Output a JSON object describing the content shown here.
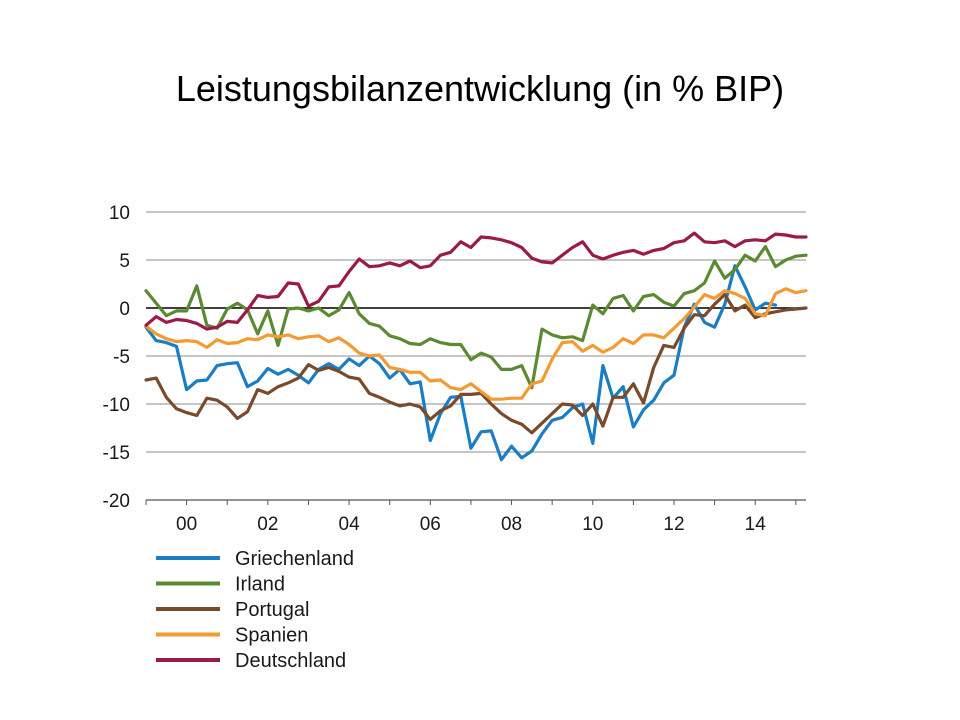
{
  "slide": {
    "title": "Leistungsbilanzentwicklung (in % BIP)"
  },
  "chart_data": {
    "type": "line",
    "title": "Leistungsbilanzentwicklung (in % BIP)",
    "xlabel": "",
    "ylabel": "",
    "xlim": [
      1999,
      2015.25
    ],
    "ylim": [
      -20,
      10
    ],
    "grid": true,
    "legend_position": "bottom-left",
    "y_ticks": [
      10,
      5,
      0,
      -5,
      -10,
      -15,
      -20
    ],
    "y_tick_labels": [
      "10",
      "5",
      "0",
      "-5",
      "-10",
      "-15",
      "-20"
    ],
    "x_ticks": [
      2000,
      2002,
      2004,
      2006,
      2008,
      2010,
      2012,
      2014
    ],
    "x_tick_labels": [
      "00",
      "02",
      "04",
      "06",
      "08",
      "10",
      "12",
      "14"
    ],
    "series": [
      {
        "name": "Griechenland",
        "color": "#1b7dc3",
        "x": [
          1999.0,
          1999.25,
          1999.5,
          1999.75,
          2000.0,
          2000.25,
          2000.5,
          2000.75,
          2001.0,
          2001.25,
          2001.5,
          2001.75,
          2002.0,
          2002.25,
          2002.5,
          2002.75,
          2003.0,
          2003.25,
          2003.5,
          2003.75,
          2004.0,
          2004.25,
          2004.5,
          2004.75,
          2005.0,
          2005.25,
          2005.5,
          2005.75,
          2006.0,
          2006.25,
          2006.5,
          2006.75,
          2007.0,
          2007.25,
          2007.5,
          2007.75,
          2008.0,
          2008.25,
          2008.5,
          2008.75,
          2009.0,
          2009.25,
          2009.5,
          2009.75,
          2010.0,
          2010.25,
          2010.5,
          2010.75,
          2011.0,
          2011.25,
          2011.5,
          2011.75,
          2012.0,
          2012.25,
          2012.5,
          2012.75,
          2013.0,
          2013.25,
          2013.5,
          2013.75,
          2014.0,
          2014.25,
          2014.5
        ],
        "values": [
          -2.0,
          -3.4,
          -3.6,
          -4.0,
          -8.5,
          -7.6,
          -7.5,
          -6.0,
          -5.8,
          -5.7,
          -8.2,
          -7.6,
          -6.3,
          -6.9,
          -6.4,
          -7.0,
          -7.8,
          -6.4,
          -5.8,
          -6.4,
          -5.3,
          -6.0,
          -5.0,
          -5.8,
          -7.3,
          -6.4,
          -7.9,
          -7.7,
          -13.8,
          -11.0,
          -9.3,
          -9.2,
          -14.6,
          -12.9,
          -12.8,
          -15.8,
          -14.4,
          -15.6,
          -14.9,
          -13.1,
          -11.7,
          -11.4,
          -10.4,
          -10.0,
          -14.1,
          -6.0,
          -9.4,
          -8.2,
          -12.4,
          -10.6,
          -9.6,
          -7.8,
          -7.0,
          -2.0,
          0.4,
          -1.5,
          -2.0,
          0.4,
          4.4,
          2.2,
          -0.2,
          0.5,
          0.3
        ]
      },
      {
        "name": "Irland",
        "color": "#5b8a33",
        "x": [
          1999.0,
          1999.25,
          1999.5,
          1999.75,
          2000.0,
          2000.25,
          2000.5,
          2000.75,
          2001.0,
          2001.25,
          2001.5,
          2001.75,
          2002.0,
          2002.25,
          2002.5,
          2002.75,
          2003.0,
          2003.25,
          2003.5,
          2003.75,
          2004.0,
          2004.25,
          2004.5,
          2004.75,
          2005.0,
          2005.25,
          2005.5,
          2005.75,
          2006.0,
          2006.25,
          2006.5,
          2006.75,
          2007.0,
          2007.25,
          2007.5,
          2007.75,
          2008.0,
          2008.25,
          2008.5,
          2008.75,
          2009.0,
          2009.25,
          2009.5,
          2009.75,
          2010.0,
          2010.25,
          2010.5,
          2010.75,
          2011.0,
          2011.25,
          2011.5,
          2011.75,
          2012.0,
          2012.25,
          2012.5,
          2012.75,
          2013.0,
          2013.25,
          2013.5,
          2013.75,
          2014.0,
          2014.25,
          2014.5,
          2014.75,
          2015.0,
          2015.25
        ],
        "values": [
          1.8,
          0.5,
          -0.8,
          -0.3,
          -0.3,
          2.3,
          -1.8,
          -2.1,
          -0.1,
          0.5,
          -0.2,
          -2.7,
          -0.3,
          -3.9,
          -0.1,
          0.0,
          -0.3,
          0.0,
          -0.8,
          -0.2,
          1.6,
          -0.6,
          -1.6,
          -1.9,
          -2.9,
          -3.2,
          -3.7,
          -3.8,
          -3.2,
          -3.6,
          -3.8,
          -3.8,
          -5.4,
          -4.7,
          -5.1,
          -6.4,
          -6.4,
          -6.0,
          -8.3,
          -2.2,
          -2.8,
          -3.1,
          -3.0,
          -3.4,
          0.3,
          -0.6,
          1.0,
          1.3,
          -0.3,
          1.2,
          1.4,
          0.6,
          0.2,
          1.5,
          1.8,
          2.6,
          4.9,
          3.1,
          4.0,
          5.5,
          4.9,
          6.4,
          4.3,
          5.0,
          5.4,
          5.5
        ]
      },
      {
        "name": "Portugal",
        "color": "#7a4a2a",
        "x": [
          1999.0,
          1999.25,
          1999.5,
          1999.75,
          2000.0,
          2000.25,
          2000.5,
          2000.75,
          2001.0,
          2001.25,
          2001.5,
          2001.75,
          2002.0,
          2002.25,
          2002.5,
          2002.75,
          2003.0,
          2003.25,
          2003.5,
          2003.75,
          2004.0,
          2004.25,
          2004.5,
          2004.75,
          2005.0,
          2005.25,
          2005.5,
          2005.75,
          2006.0,
          2006.25,
          2006.5,
          2006.75,
          2007.0,
          2007.25,
          2007.5,
          2007.75,
          2008.0,
          2008.25,
          2008.5,
          2008.75,
          2009.0,
          2009.25,
          2009.5,
          2009.75,
          2010.0,
          2010.25,
          2010.5,
          2010.75,
          2011.0,
          2011.25,
          2011.5,
          2011.75,
          2012.0,
          2012.25,
          2012.5,
          2012.75,
          2013.0,
          2013.25,
          2013.5,
          2013.75,
          2014.0,
          2014.25,
          2014.5,
          2014.75,
          2015.0,
          2015.25
        ],
        "values": [
          -7.5,
          -7.3,
          -9.3,
          -10.5,
          -10.9,
          -11.2,
          -9.4,
          -9.6,
          -10.3,
          -11.5,
          -10.8,
          -8.5,
          -8.9,
          -8.2,
          -7.8,
          -7.3,
          -5.9,
          -6.5,
          -6.2,
          -6.6,
          -7.2,
          -7.4,
          -8.9,
          -9.3,
          -9.8,
          -10.2,
          -10.0,
          -10.3,
          -11.6,
          -10.7,
          -10.2,
          -9.0,
          -9.0,
          -8.9,
          -10.0,
          -11.0,
          -11.7,
          -12.1,
          -13.0,
          -12.0,
          -11.0,
          -10.0,
          -10.1,
          -11.2,
          -10.0,
          -12.3,
          -9.3,
          -9.3,
          -7.9,
          -9.9,
          -6.2,
          -3.9,
          -4.1,
          -2.1,
          -0.7,
          -0.8,
          0.4,
          1.4,
          -0.3,
          0.3,
          -1.0,
          -0.6,
          -0.4,
          -0.2,
          -0.1,
          0.0
        ]
      },
      {
        "name": "Spanien",
        "color": "#f39a32",
        "x": [
          1999.0,
          1999.25,
          1999.5,
          1999.75,
          2000.0,
          2000.25,
          2000.5,
          2000.75,
          2001.0,
          2001.25,
          2001.5,
          2001.75,
          2002.0,
          2002.25,
          2002.5,
          2002.75,
          2003.0,
          2003.25,
          2003.5,
          2003.75,
          2004.0,
          2004.25,
          2004.5,
          2004.75,
          2005.0,
          2005.25,
          2005.5,
          2005.75,
          2006.0,
          2006.25,
          2006.5,
          2006.75,
          2007.0,
          2007.25,
          2007.5,
          2007.75,
          2008.0,
          2008.25,
          2008.5,
          2008.75,
          2009.0,
          2009.25,
          2009.5,
          2009.75,
          2010.0,
          2010.25,
          2010.5,
          2010.75,
          2011.0,
          2011.25,
          2011.5,
          2011.75,
          2012.0,
          2012.25,
          2012.5,
          2012.75,
          2013.0,
          2013.25,
          2013.5,
          2013.75,
          2014.0,
          2014.25,
          2014.5,
          2014.75,
          2015.0,
          2015.25
        ],
        "values": [
          -1.9,
          -2.7,
          -3.2,
          -3.5,
          -3.4,
          -3.5,
          -4.1,
          -3.3,
          -3.7,
          -3.6,
          -3.2,
          -3.3,
          -2.8,
          -3.0,
          -2.8,
          -3.2,
          -3.0,
          -2.9,
          -3.5,
          -3.1,
          -3.8,
          -4.7,
          -5.0,
          -4.9,
          -6.2,
          -6.4,
          -6.7,
          -6.7,
          -7.6,
          -7.5,
          -8.3,
          -8.5,
          -7.9,
          -8.7,
          -9.5,
          -9.5,
          -9.4,
          -9.4,
          -7.9,
          -7.6,
          -5.3,
          -3.6,
          -3.5,
          -4.5,
          -3.9,
          -4.6,
          -4.1,
          -3.2,
          -3.7,
          -2.8,
          -2.8,
          -3.1,
          -2.1,
          -1.1,
          0.1,
          1.4,
          1.0,
          1.8,
          1.5,
          1.0,
          -0.6,
          -0.8,
          1.5,
          2.0,
          1.6,
          1.8
        ]
      },
      {
        "name": "Deutschland",
        "color": "#9a1a4a",
        "x": [
          1999.0,
          1999.25,
          1999.5,
          1999.75,
          2000.0,
          2000.25,
          2000.5,
          2000.75,
          2001.0,
          2001.25,
          2001.5,
          2001.75,
          2002.0,
          2002.25,
          2002.5,
          2002.75,
          2003.0,
          2003.25,
          2003.5,
          2003.75,
          2004.0,
          2004.25,
          2004.5,
          2004.75,
          2005.0,
          2005.25,
          2005.5,
          2005.75,
          2006.0,
          2006.25,
          2006.5,
          2006.75,
          2007.0,
          2007.25,
          2007.5,
          2007.75,
          2008.0,
          2008.25,
          2008.5,
          2008.75,
          2009.0,
          2009.25,
          2009.5,
          2009.75,
          2010.0,
          2010.25,
          2010.5,
          2010.75,
          2011.0,
          2011.25,
          2011.5,
          2011.75,
          2012.0,
          2012.25,
          2012.5,
          2012.75,
          2013.0,
          2013.25,
          2013.5,
          2013.75,
          2014.0,
          2014.25,
          2014.5,
          2014.75,
          2015.0,
          2015.25
        ],
        "values": [
          -1.8,
          -0.9,
          -1.5,
          -1.2,
          -1.3,
          -1.6,
          -2.2,
          -2.0,
          -1.4,
          -1.5,
          -0.2,
          1.3,
          1.1,
          1.2,
          2.6,
          2.5,
          0.2,
          0.7,
          2.2,
          2.3,
          3.8,
          5.1,
          4.3,
          4.4,
          4.7,
          4.4,
          4.9,
          4.2,
          4.4,
          5.5,
          5.8,
          6.9,
          6.3,
          7.4,
          7.3,
          7.1,
          6.8,
          6.3,
          5.2,
          4.8,
          4.7,
          5.5,
          6.3,
          6.9,
          5.5,
          5.1,
          5.5,
          5.8,
          6.0,
          5.6,
          6.0,
          6.2,
          6.8,
          7.0,
          7.8,
          6.9,
          6.8,
          7.0,
          6.4,
          7.0,
          7.1,
          7.0,
          7.7,
          7.6,
          7.4,
          7.4
        ]
      }
    ]
  }
}
